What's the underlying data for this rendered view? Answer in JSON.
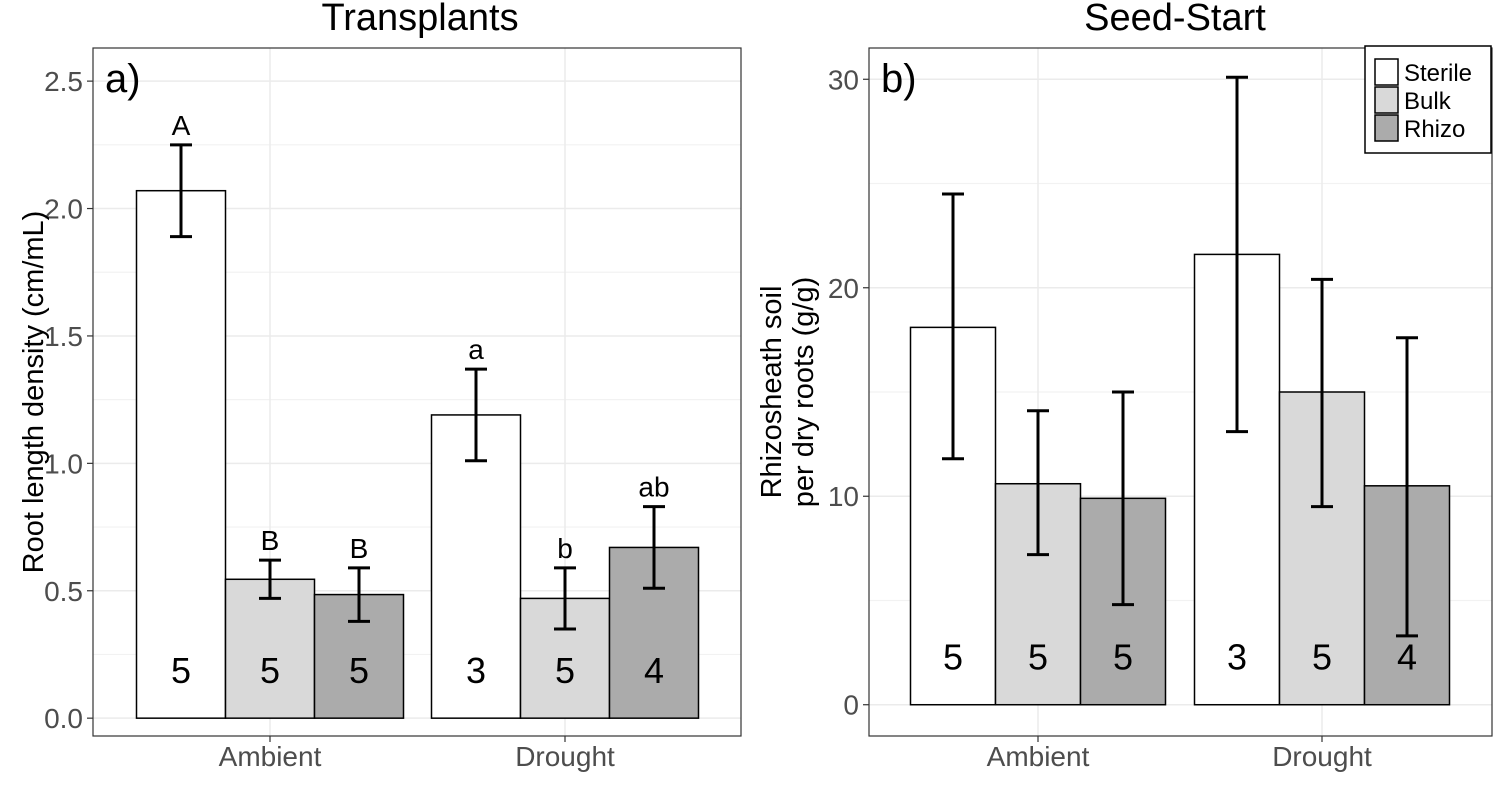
{
  "chart_data": [
    {
      "type": "bar",
      "title": "Transplants",
      "panel_label": "a)",
      "ylabel": "Root length density (cm/mL)",
      "xlabel": "",
      "ylim": [
        -0.07,
        2.63
      ],
      "yticks": [
        "0.0",
        "0.5",
        "1.0",
        "1.5",
        "2.0",
        "2.5"
      ],
      "ytick_values": [
        0,
        0.5,
        1.0,
        1.5,
        2.0,
        2.5
      ],
      "grid": true,
      "categories": [
        "Ambient",
        "Drought"
      ],
      "series": [
        {
          "name": "Sterile",
          "color": "#ffffff",
          "values": [
            2.07,
            1.19
          ],
          "err_low": [
            1.89,
            1.01
          ],
          "err_high": [
            2.25,
            1.37
          ],
          "letters": [
            "A",
            "a"
          ],
          "n": [
            "5",
            "3"
          ]
        },
        {
          "name": "Bulk",
          "color": "#d9d9d9",
          "values": [
            0.545,
            0.47
          ],
          "err_low": [
            0.47,
            0.35
          ],
          "err_high": [
            0.62,
            0.59
          ],
          "letters": [
            "B",
            "b"
          ],
          "n": [
            "5",
            "5"
          ]
        },
        {
          "name": "Rhizo",
          "color": "#ababab",
          "values": [
            0.485,
            0.67
          ],
          "err_low": [
            0.38,
            0.51
          ],
          "err_high": [
            0.59,
            0.83
          ],
          "letters": [
            "B",
            "ab"
          ],
          "n": [
            "5",
            "4"
          ]
        }
      ]
    },
    {
      "type": "bar",
      "title": "Seed-Start",
      "panel_label": "b)",
      "ylabel": [
        "Rhizosheath soil",
        "per dry roots (g/g)"
      ],
      "xlabel": "",
      "ylim": [
        -1.5,
        31.5
      ],
      "yticks": [
        "0",
        "10",
        "20",
        "30"
      ],
      "ytick_values": [
        0,
        10,
        20,
        30
      ],
      "grid": true,
      "categories": [
        "Ambient",
        "Drought"
      ],
      "legend": {
        "position": "top-right",
        "entries": [
          "Sterile",
          "Bulk",
          "Rhizo"
        ]
      },
      "series": [
        {
          "name": "Sterile",
          "color": "#ffffff",
          "values": [
            18.1,
            21.6
          ],
          "err_low": [
            11.8,
            13.1
          ],
          "err_high": [
            24.5,
            30.1
          ],
          "letters": [
            "",
            ""
          ],
          "n": [
            "5",
            "3"
          ]
        },
        {
          "name": "Bulk",
          "color": "#d9d9d9",
          "values": [
            10.6,
            15.0
          ],
          "err_low": [
            7.2,
            9.5
          ],
          "err_high": [
            14.1,
            20.4
          ],
          "letters": [
            "",
            ""
          ],
          "n": [
            "5",
            "5"
          ]
        },
        {
          "name": "Rhizo",
          "color": "#ababab",
          "values": [
            9.9,
            10.5
          ],
          "err_low": [
            4.8,
            3.3
          ],
          "err_high": [
            15.0,
            17.6
          ],
          "letters": [
            "",
            ""
          ],
          "n": [
            "5",
            "4"
          ]
        }
      ]
    }
  ]
}
